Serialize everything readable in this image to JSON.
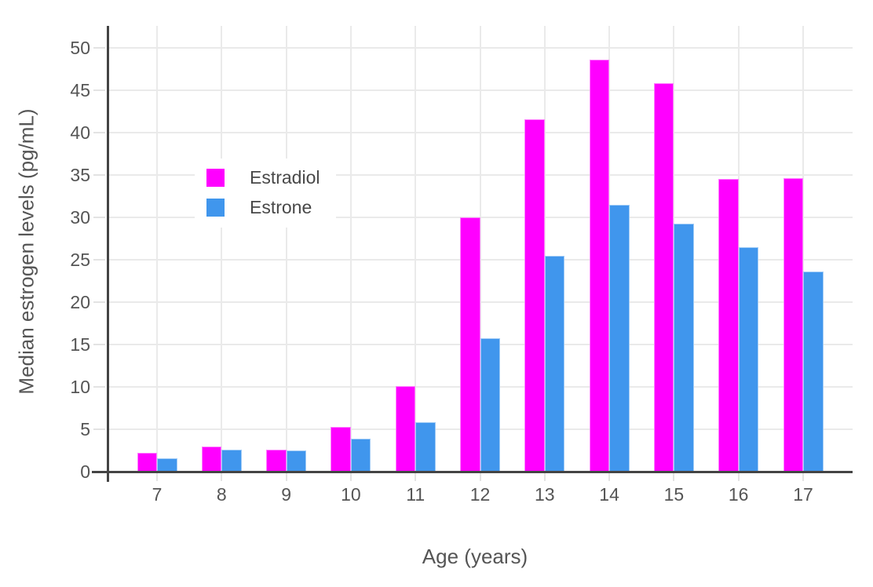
{
  "chart_data": {
    "type": "bar",
    "title": "",
    "xlabel": "Age (years)",
    "ylabel": "Median estrogen levels (pg/mL)",
    "categories": [
      7,
      8,
      9,
      10,
      11,
      12,
      13,
      14,
      15,
      16,
      17
    ],
    "series": [
      {
        "name": "Estradiol",
        "color": "#ff00ff",
        "values": [
          2.2,
          3.0,
          2.6,
          5.3,
          10.1,
          30.0,
          41.6,
          48.6,
          45.8,
          34.5,
          34.6
        ]
      },
      {
        "name": "Estrone",
        "color": "#4096ed",
        "values": [
          1.6,
          2.6,
          2.5,
          3.9,
          5.8,
          15.7,
          25.5,
          31.5,
          29.3,
          26.5,
          23.6
        ]
      }
    ],
    "yticks": [
      0,
      5,
      10,
      15,
      20,
      25,
      30,
      35,
      40,
      45,
      50
    ],
    "ylim": [
      0,
      52.7
    ],
    "grid": true,
    "legend_position": "inside-top-left",
    "colors": {
      "grid": "#eaeaea",
      "axis_line": "#444444",
      "tick_text": "#555555",
      "background": "#ffffff"
    }
  }
}
